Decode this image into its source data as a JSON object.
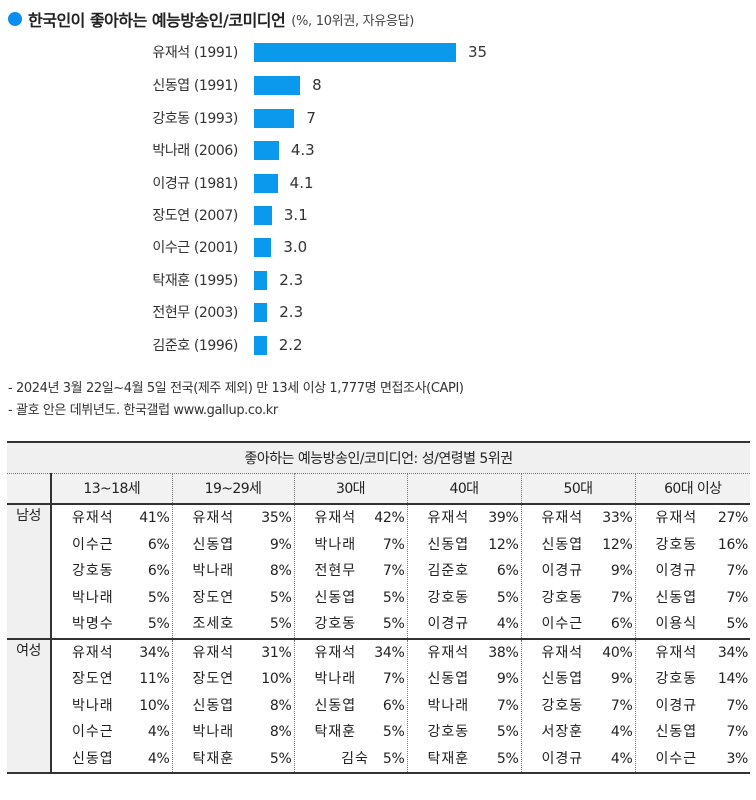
{
  "title": {
    "main": "한국인이 좋아하는 예능방송인/코미디언",
    "sub": "(%, 10위권, 자유응답)",
    "dot_color": "#0b8ef0"
  },
  "chart_data": {
    "type": "bar",
    "orientation": "horizontal",
    "title": "한국인이 좋아하는 예능방송인/코미디언",
    "subtitle": "(%, 10위권, 자유응답)",
    "xlabel": "",
    "ylabel": "",
    "bar_color": "#0a99ec",
    "categories": [
      "유재석 (1991)",
      "신동엽 (1991)",
      "강호동 (1993)",
      "박나래 (2006)",
      "이경규 (1981)",
      "장도연 (2007)",
      "이수근 (2001)",
      "탁재훈 (1995)",
      "전현무 (2003)",
      "김준호 (1996)"
    ],
    "values": [
      35,
      8,
      7,
      4.3,
      4.1,
      3.1,
      3.0,
      2.3,
      2.3,
      2.2
    ],
    "value_labels": [
      "35",
      "8",
      "7",
      "4.3",
      "4.1",
      "3.1",
      "3.0",
      "2.3",
      "2.3",
      "2.2"
    ],
    "grid": false,
    "legend": null
  },
  "notes": [
    "- 2024년 3월 22일~4월 5일 전국(제주 제외) 만 13세 이상 1,777명 면접조사(CAPI)",
    "- 괄호 안은 데뷔년도. 한국갤럽 www.gallup.co.kr"
  ],
  "table": {
    "title": "좋아하는 예능방송인/코미디언: 성/연령별 5위권",
    "age_groups": [
      "13~18세",
      "19~29세",
      "30대",
      "40대",
      "50대",
      "60대 이상"
    ],
    "sections": [
      {
        "gender": "남성",
        "groups": [
          [
            [
              "유재석",
              "41%"
            ],
            [
              "이수근",
              "6%"
            ],
            [
              "강호동",
              "6%"
            ],
            [
              "박나래",
              "5%"
            ],
            [
              "박명수",
              "5%"
            ]
          ],
          [
            [
              "유재석",
              "35%"
            ],
            [
              "신동엽",
              "9%"
            ],
            [
              "박나래",
              "8%"
            ],
            [
              "장도연",
              "5%"
            ],
            [
              "조세호",
              "5%"
            ]
          ],
          [
            [
              "유재석",
              "42%"
            ],
            [
              "박나래",
              "7%"
            ],
            [
              "전현무",
              "7%"
            ],
            [
              "신동엽",
              "5%"
            ],
            [
              "강호동",
              "5%"
            ]
          ],
          [
            [
              "유재석",
              "39%"
            ],
            [
              "신동엽",
              "12%"
            ],
            [
              "김준호",
              "6%"
            ],
            [
              "강호동",
              "5%"
            ],
            [
              "이경규",
              "4%"
            ]
          ],
          [
            [
              "유재석",
              "33%"
            ],
            [
              "신동엽",
              "12%"
            ],
            [
              "이경규",
              "9%"
            ],
            [
              "강호동",
              "7%"
            ],
            [
              "이수근",
              "6%"
            ]
          ],
          [
            [
              "유재석",
              "27%"
            ],
            [
              "강호동",
              "16%"
            ],
            [
              "이경규",
              "7%"
            ],
            [
              "신동엽",
              "7%"
            ],
            [
              "이용식",
              "5%"
            ]
          ]
        ]
      },
      {
        "gender": "여성",
        "groups": [
          [
            [
              "유재석",
              "34%"
            ],
            [
              "장도연",
              "11%"
            ],
            [
              "박나래",
              "10%"
            ],
            [
              "이수근",
              "4%"
            ],
            [
              "신동엽",
              "4%"
            ]
          ],
          [
            [
              "유재석",
              "31%"
            ],
            [
              "장도연",
              "10%"
            ],
            [
              "신동엽",
              "8%"
            ],
            [
              "박나래",
              "8%"
            ],
            [
              "탁재훈",
              "5%"
            ]
          ],
          [
            [
              "유재석",
              "34%"
            ],
            [
              "박나래",
              "7%"
            ],
            [
              "신동엽",
              "6%"
            ],
            [
              "탁재훈",
              "5%"
            ],
            [
              "김숙",
              "5%"
            ]
          ],
          [
            [
              "유재석",
              "38%"
            ],
            [
              "신동엽",
              "9%"
            ],
            [
              "박나래",
              "7%"
            ],
            [
              "강호동",
              "5%"
            ],
            [
              "탁재훈",
              "5%"
            ]
          ],
          [
            [
              "유재석",
              "40%"
            ],
            [
              "신동엽",
              "9%"
            ],
            [
              "강호동",
              "7%"
            ],
            [
              "서장훈",
              "4%"
            ],
            [
              "이경규",
              "4%"
            ]
          ],
          [
            [
              "유재석",
              "34%"
            ],
            [
              "강호동",
              "14%"
            ],
            [
              "이경규",
              "7%"
            ],
            [
              "신동엽",
              "7%"
            ],
            [
              "이수근",
              "3%"
            ]
          ]
        ]
      }
    ]
  }
}
